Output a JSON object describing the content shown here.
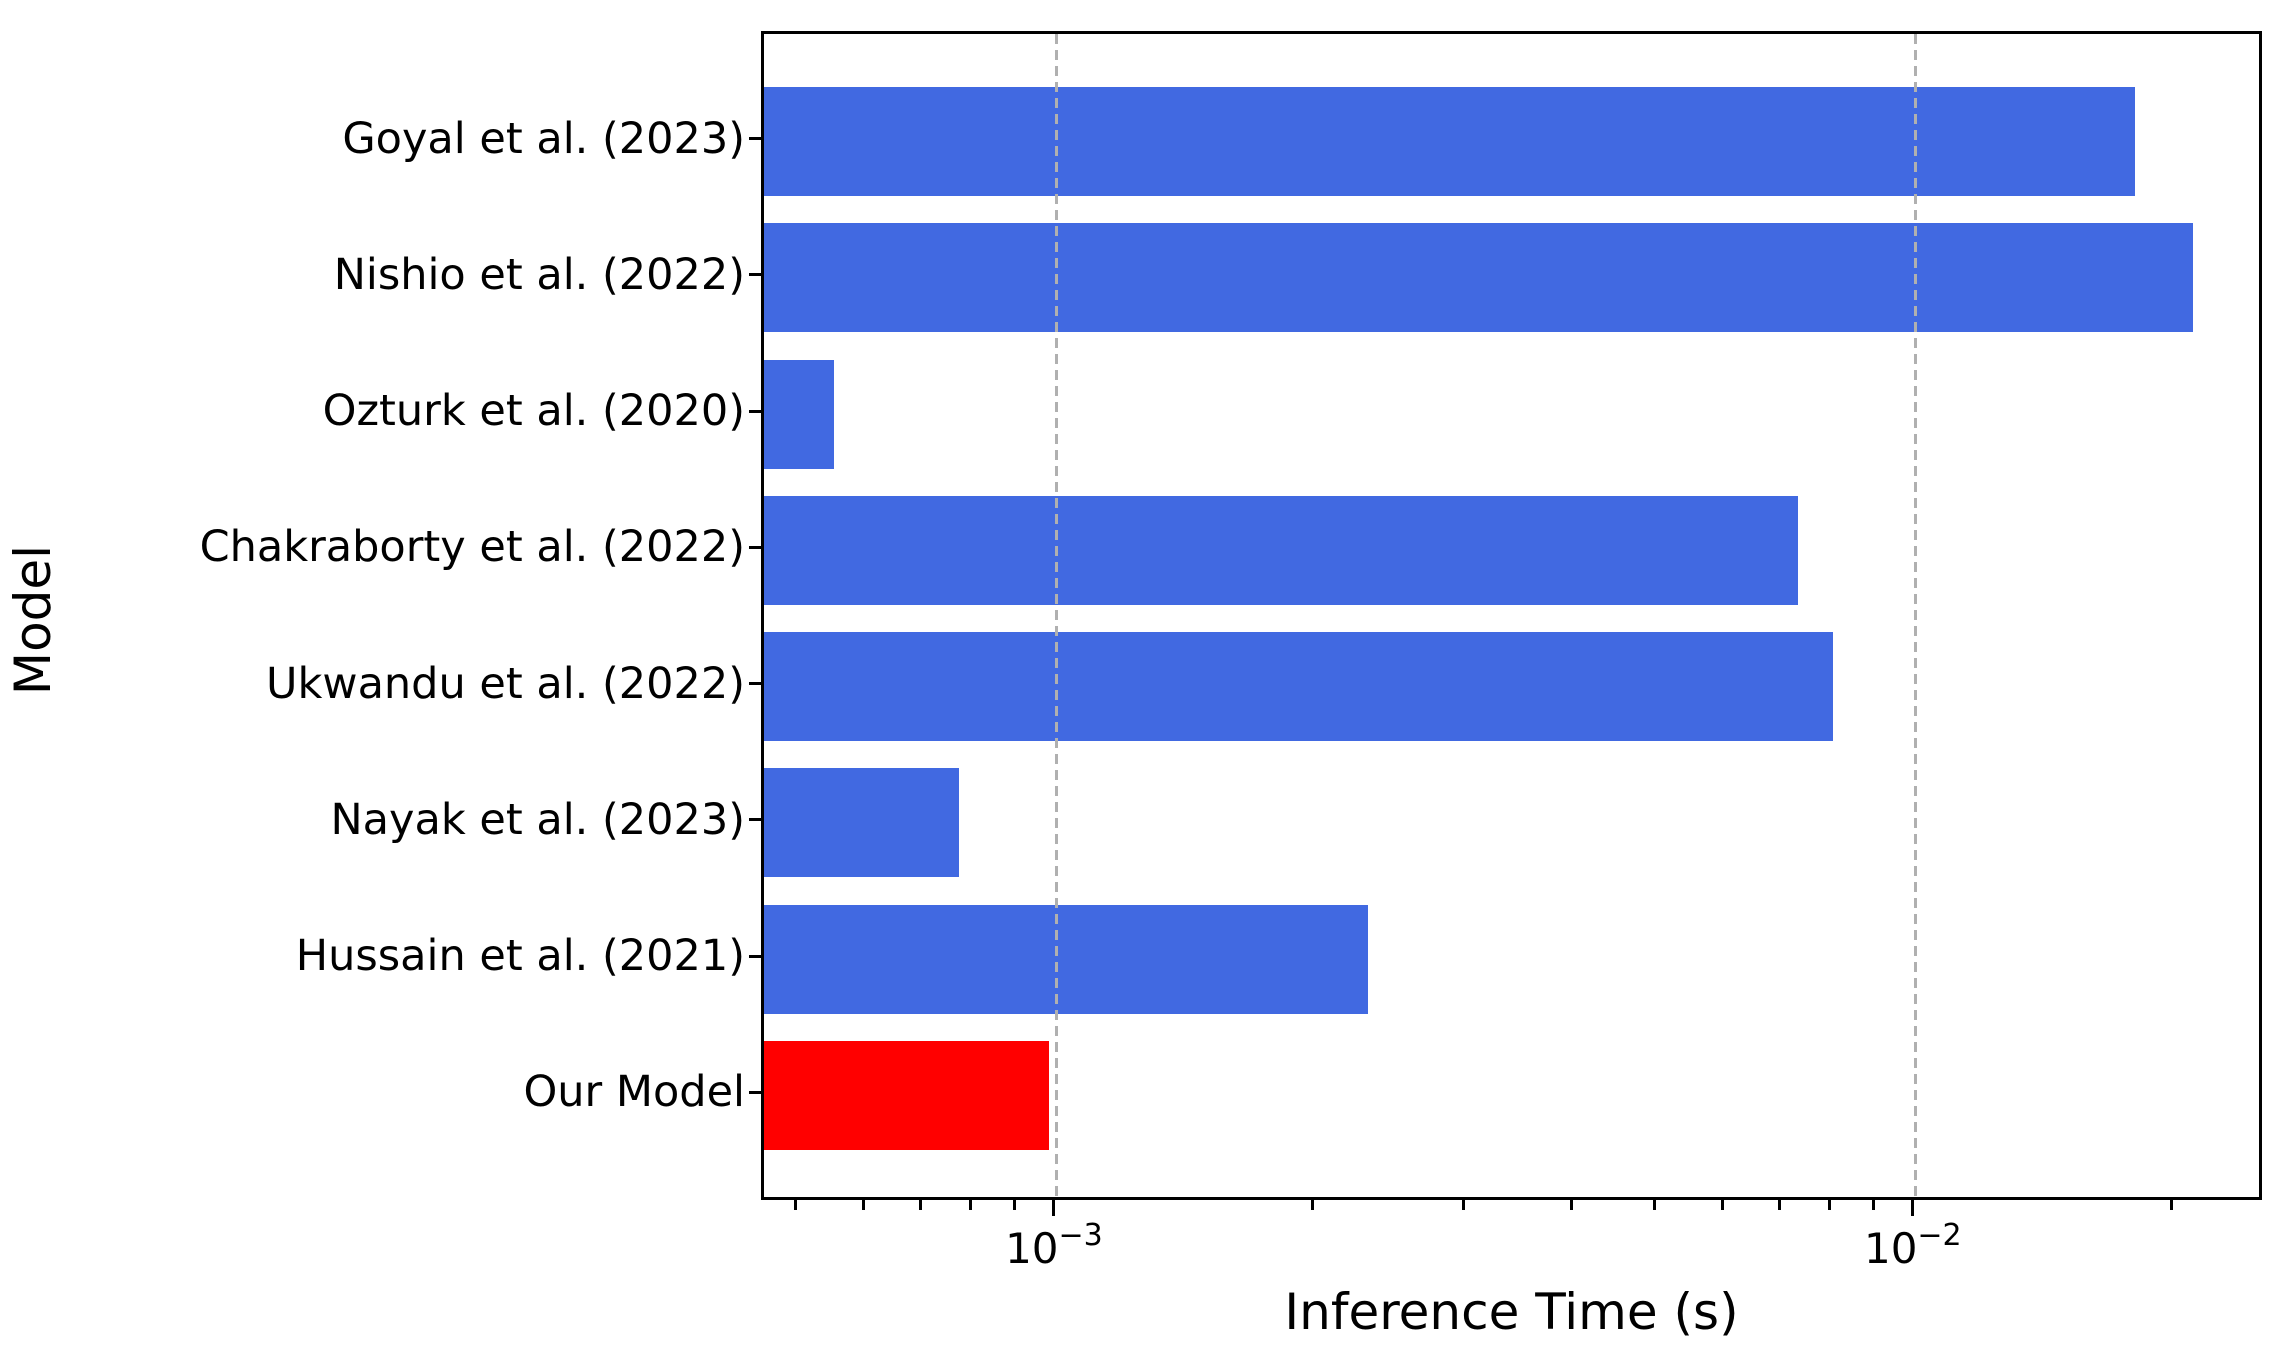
{
  "chart_data": {
    "type": "bar",
    "orientation": "horizontal",
    "title": "",
    "xlabel": "Inference Time (s)",
    "ylabel": "Model",
    "x_scale": "log",
    "x_range": [
      0.000456,
      0.0255
    ],
    "grid": {
      "axis": "x",
      "style": "dashed",
      "color": "#b0b0b0",
      "on_values": [
        0.001,
        0.01
      ]
    },
    "categories": [
      "Goyal et al. (2023)",
      "Nishio et al. (2022)",
      "Ozturk et al. (2020)",
      "Chakraborty et al. (2022)",
      "Ukwandu et al. (2022)",
      "Nayak et al. (2023)",
      "Hussain et al. (2021)",
      "Our Model"
    ],
    "values": [
      0.018,
      0.021,
      0.00055,
      0.0073,
      0.008,
      0.00077,
      0.0023,
      0.00098
    ],
    "default_bar_color": "#4169e1",
    "highlight_color": "#ff0000",
    "highlight_index": 7,
    "bar_colors": [
      "#4169e1",
      "#4169e1",
      "#4169e1",
      "#4169e1",
      "#4169e1",
      "#4169e1",
      "#4169e1",
      "#ff0000"
    ],
    "major_ticks": [
      {
        "value": 0.001,
        "base": "10",
        "exp": "−3"
      },
      {
        "value": 0.01,
        "base": "10",
        "exp": "−2"
      }
    ],
    "minor_tick_values": [
      0.0005,
      0.0006,
      0.0007,
      0.0008,
      0.0009,
      0.002,
      0.003,
      0.004,
      0.005,
      0.006,
      0.007,
      0.008,
      0.009,
      0.02
    ],
    "legend": null
  }
}
